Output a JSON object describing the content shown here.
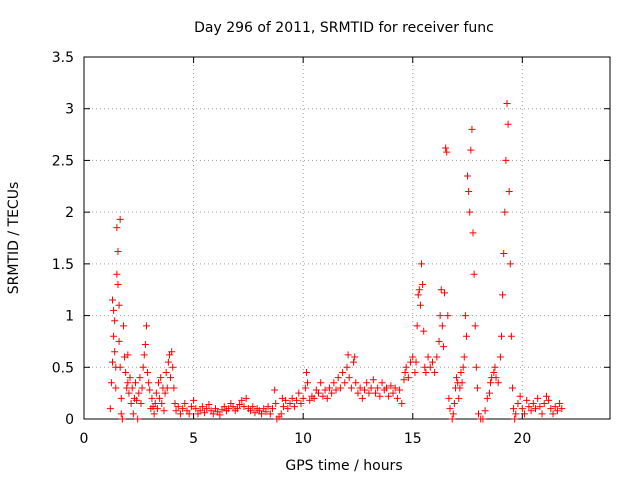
{
  "chart_data": {
    "type": "scatter",
    "title": "Day 296 of 2011, SRMTID for receiver func",
    "xlabel": "GPS time / hours",
    "ylabel": "SRMTID / TECUs",
    "xlim": [
      0,
      24
    ],
    "ylim": [
      0,
      3.5
    ],
    "grid": true,
    "marker": "+",
    "color": "#ff0000",
    "xticks": [
      0,
      5,
      10,
      15,
      20
    ],
    "xtick_labels": [
      "0",
      "5",
      "10",
      "15",
      "20"
    ],
    "yticks": [
      0,
      0.5,
      1,
      1.5,
      2,
      2.5,
      3,
      3.5
    ],
    "ytick_labels": [
      "0",
      "0.5",
      "1",
      "1.5",
      "2",
      "2.5",
      "3",
      "3.5"
    ],
    "series": [
      {
        "name": "SRMTID",
        "points": [
          [
            1.2,
            0.1
          ],
          [
            1.25,
            0.35
          ],
          [
            1.3,
            0.55
          ],
          [
            1.3,
            1.15
          ],
          [
            1.35,
            1.05
          ],
          [
            1.35,
            0.8
          ],
          [
            1.4,
            0.65
          ],
          [
            1.4,
            0.95
          ],
          [
            1.45,
            0.5
          ],
          [
            1.45,
            0.3
          ],
          [
            1.5,
            1.85
          ],
          [
            1.5,
            1.4
          ],
          [
            1.55,
            1.62
          ],
          [
            1.55,
            1.3
          ],
          [
            1.6,
            1.1
          ],
          [
            1.6,
            0.75
          ],
          [
            1.65,
            1.93
          ],
          [
            1.65,
            0.5
          ],
          [
            1.7,
            0.2
          ],
          [
            1.7,
            0.05
          ],
          [
            1.75,
            0.0
          ],
          [
            1.8,
            0.9
          ],
          [
            1.85,
            0.6
          ],
          [
            1.9,
            0.45
          ],
          [
            1.95,
            0.3
          ],
          [
            2.0,
            0.62
          ],
          [
            2.0,
            0.35
          ],
          [
            2.05,
            0.25
          ],
          [
            2.1,
            0.4
          ],
          [
            2.15,
            0.15
          ],
          [
            2.2,
            0.3
          ],
          [
            2.25,
            0.05
          ],
          [
            2.3,
            0.2
          ],
          [
            2.35,
            0.35
          ],
          [
            2.4,
            0.18
          ],
          [
            2.45,
            0.0
          ],
          [
            2.5,
            0.25
          ],
          [
            2.55,
            0.4
          ],
          [
            2.6,
            0.15
          ],
          [
            2.65,
            0.3
          ],
          [
            2.7,
            0.5
          ],
          [
            2.75,
            0.62
          ],
          [
            2.8,
            0.72
          ],
          [
            2.85,
            0.9
          ],
          [
            2.9,
            0.45
          ],
          [
            2.95,
            0.35
          ],
          [
            3.0,
            0.28
          ],
          [
            3.05,
            0.1
          ],
          [
            3.1,
            0.2
          ],
          [
            3.15,
            0.12
          ],
          [
            3.2,
            0.05
          ],
          [
            3.25,
            0.15
          ],
          [
            3.3,
            0.25
          ],
          [
            3.35,
            0.1
          ],
          [
            3.4,
            0.35
          ],
          [
            3.45,
            0.2
          ],
          [
            3.5,
            0.4
          ],
          [
            3.55,
            0.15
          ],
          [
            3.6,
            0.3
          ],
          [
            3.65,
            0.08
          ],
          [
            3.7,
            0.25
          ],
          [
            3.75,
            0.45
          ],
          [
            3.8,
            0.3
          ],
          [
            3.85,
            0.55
          ],
          [
            3.9,
            0.62
          ],
          [
            3.95,
            0.4
          ],
          [
            4.0,
            0.65
          ],
          [
            4.05,
            0.5
          ],
          [
            4.1,
            0.3
          ],
          [
            4.15,
            0.15
          ],
          [
            4.2,
            0.08
          ],
          [
            4.3,
            0.12
          ],
          [
            4.4,
            0.05
          ],
          [
            4.5,
            0.1
          ],
          [
            4.6,
            0.15
          ],
          [
            4.7,
            0.08
          ],
          [
            4.8,
            0.05
          ],
          [
            4.9,
            0.12
          ],
          [
            5.0,
            0.18
          ],
          [
            5.1,
            0.1
          ],
          [
            5.2,
            0.05
          ],
          [
            5.3,
            0.08
          ],
          [
            5.4,
            0.12
          ],
          [
            5.5,
            0.06
          ],
          [
            5.6,
            0.1
          ],
          [
            5.7,
            0.14
          ],
          [
            5.8,
            0.08
          ],
          [
            5.9,
            0.05
          ],
          [
            6.0,
            0.1
          ],
          [
            6.1,
            0.07
          ],
          [
            6.2,
            0.04
          ],
          [
            6.3,
            0.09
          ],
          [
            6.4,
            0.12
          ],
          [
            6.5,
            0.08
          ],
          [
            6.6,
            0.1
          ],
          [
            6.7,
            0.15
          ],
          [
            6.8,
            0.12
          ],
          [
            6.9,
            0.08
          ],
          [
            7.0,
            0.1
          ],
          [
            7.1,
            0.14
          ],
          [
            7.2,
            0.18
          ],
          [
            7.3,
            0.12
          ],
          [
            7.4,
            0.2
          ],
          [
            7.5,
            0.1
          ],
          [
            7.6,
            0.08
          ],
          [
            7.7,
            0.12
          ],
          [
            7.8,
            0.06
          ],
          [
            7.9,
            0.1
          ],
          [
            8.0,
            0.08
          ],
          [
            8.1,
            0.05
          ],
          [
            8.2,
            0.1
          ],
          [
            8.3,
            0.07
          ],
          [
            8.4,
            0.12
          ],
          [
            8.5,
            0.05
          ],
          [
            8.6,
            0.1
          ],
          [
            8.7,
            0.28
          ],
          [
            8.75,
            0.15
          ],
          [
            8.8,
            0.0
          ],
          [
            8.9,
            0.02
          ],
          [
            9.0,
            0.05
          ],
          [
            9.05,
            0.2
          ],
          [
            9.1,
            0.12
          ],
          [
            9.2,
            0.18
          ],
          [
            9.3,
            0.1
          ],
          [
            9.4,
            0.15
          ],
          [
            9.5,
            0.2
          ],
          [
            9.6,
            0.12
          ],
          [
            9.7,
            0.18
          ],
          [
            9.8,
            0.25
          ],
          [
            9.9,
            0.15
          ],
          [
            10.0,
            0.2
          ],
          [
            10.1,
            0.3
          ],
          [
            10.15,
            0.45
          ],
          [
            10.2,
            0.35
          ],
          [
            10.3,
            0.18
          ],
          [
            10.4,
            0.22
          ],
          [
            10.5,
            0.2
          ],
          [
            10.6,
            0.28
          ],
          [
            10.7,
            0.25
          ],
          [
            10.8,
            0.35
          ],
          [
            10.9,
            0.22
          ],
          [
            11.0,
            0.28
          ],
          [
            11.1,
            0.2
          ],
          [
            11.2,
            0.3
          ],
          [
            11.3,
            0.25
          ],
          [
            11.4,
            0.35
          ],
          [
            11.5,
            0.28
          ],
          [
            11.6,
            0.4
          ],
          [
            11.7,
            0.3
          ],
          [
            11.8,
            0.45
          ],
          [
            11.9,
            0.35
          ],
          [
            12.0,
            0.5
          ],
          [
            12.05,
            0.62
          ],
          [
            12.1,
            0.4
          ],
          [
            12.2,
            0.3
          ],
          [
            12.3,
            0.55
          ],
          [
            12.35,
            0.6
          ],
          [
            12.4,
            0.35
          ],
          [
            12.5,
            0.25
          ],
          [
            12.6,
            0.3
          ],
          [
            12.7,
            0.2
          ],
          [
            12.8,
            0.28
          ],
          [
            12.9,
            0.35
          ],
          [
            13.0,
            0.25
          ],
          [
            13.1,
            0.3
          ],
          [
            13.2,
            0.38
          ],
          [
            13.3,
            0.25
          ],
          [
            13.4,
            0.3
          ],
          [
            13.5,
            0.22
          ],
          [
            13.6,
            0.35
          ],
          [
            13.7,
            0.28
          ],
          [
            13.8,
            0.3
          ],
          [
            13.9,
            0.22
          ],
          [
            14.0,
            0.32
          ],
          [
            14.1,
            0.25
          ],
          [
            14.2,
            0.3
          ],
          [
            14.3,
            0.2
          ],
          [
            14.4,
            0.28
          ],
          [
            14.5,
            0.15
          ],
          [
            14.6,
            0.38
          ],
          [
            14.65,
            0.45
          ],
          [
            14.7,
            0.5
          ],
          [
            14.8,
            0.4
          ],
          [
            14.9,
            0.55
          ],
          [
            15.0,
            0.6
          ],
          [
            15.1,
            0.45
          ],
          [
            15.15,
            0.55
          ],
          [
            15.2,
            0.9
          ],
          [
            15.25,
            1.2
          ],
          [
            15.3,
            1.25
          ],
          [
            15.35,
            1.1
          ],
          [
            15.4,
            1.5
          ],
          [
            15.45,
            1.3
          ],
          [
            15.5,
            0.85
          ],
          [
            15.55,
            0.5
          ],
          [
            15.6,
            0.45
          ],
          [
            15.7,
            0.6
          ],
          [
            15.8,
            0.5
          ],
          [
            15.9,
            0.55
          ],
          [
            16.0,
            0.45
          ],
          [
            16.1,
            0.6
          ],
          [
            16.2,
            0.75
          ],
          [
            16.25,
            1.0
          ],
          [
            16.3,
            1.25
          ],
          [
            16.35,
            0.9
          ],
          [
            16.4,
            0.7
          ],
          [
            16.45,
            1.22
          ],
          [
            16.5,
            2.62
          ],
          [
            16.55,
            2.58
          ],
          [
            16.6,
            1.0
          ],
          [
            16.65,
            0.2
          ],
          [
            16.7,
            0.1
          ],
          [
            16.8,
            0.0
          ],
          [
            16.85,
            0.05
          ],
          [
            16.9,
            0.15
          ],
          [
            16.95,
            0.3
          ],
          [
            17.0,
            0.4
          ],
          [
            17.05,
            0.35
          ],
          [
            17.1,
            0.2
          ],
          [
            17.15,
            0.3
          ],
          [
            17.2,
            0.45
          ],
          [
            17.25,
            0.35
          ],
          [
            17.3,
            0.5
          ],
          [
            17.35,
            0.6
          ],
          [
            17.4,
            1.0
          ],
          [
            17.45,
            0.8
          ],
          [
            17.5,
            2.35
          ],
          [
            17.55,
            2.2
          ],
          [
            17.6,
            2.0
          ],
          [
            17.65,
            2.6
          ],
          [
            17.7,
            2.8
          ],
          [
            17.75,
            1.8
          ],
          [
            17.8,
            1.4
          ],
          [
            17.85,
            0.9
          ],
          [
            17.9,
            0.5
          ],
          [
            17.95,
            0.3
          ],
          [
            18.0,
            0.05
          ],
          [
            18.1,
            0.0
          ],
          [
            18.2,
            0.0
          ],
          [
            18.3,
            0.08
          ],
          [
            18.4,
            0.2
          ],
          [
            18.5,
            0.25
          ],
          [
            18.55,
            0.35
          ],
          [
            18.6,
            0.4
          ],
          [
            18.7,
            0.45
          ],
          [
            18.75,
            0.5
          ],
          [
            18.8,
            0.4
          ],
          [
            18.9,
            0.35
          ],
          [
            19.0,
            0.6
          ],
          [
            19.05,
            0.8
          ],
          [
            19.1,
            1.2
          ],
          [
            19.15,
            1.6
          ],
          [
            19.2,
            2.0
          ],
          [
            19.25,
            2.5
          ],
          [
            19.3,
            3.05
          ],
          [
            19.35,
            2.85
          ],
          [
            19.4,
            2.2
          ],
          [
            19.45,
            1.5
          ],
          [
            19.5,
            0.8
          ],
          [
            19.55,
            0.3
          ],
          [
            19.6,
            0.1
          ],
          [
            19.65,
            0.0
          ],
          [
            19.7,
            0.05
          ],
          [
            19.8,
            0.15
          ],
          [
            19.9,
            0.22
          ],
          [
            20.0,
            0.1
          ],
          [
            20.1,
            0.05
          ],
          [
            20.2,
            0.18
          ],
          [
            20.3,
            0.12
          ],
          [
            20.4,
            0.08
          ],
          [
            20.5,
            0.15
          ],
          [
            20.6,
            0.1
          ],
          [
            20.7,
            0.2
          ],
          [
            20.8,
            0.12
          ],
          [
            20.9,
            0.05
          ],
          [
            21.0,
            0.15
          ],
          [
            21.1,
            0.22
          ],
          [
            21.2,
            0.18
          ],
          [
            21.3,
            0.1
          ],
          [
            21.4,
            0.05
          ],
          [
            21.5,
            0.12
          ],
          [
            21.6,
            0.08
          ],
          [
            21.7,
            0.15
          ],
          [
            21.8,
            0.1
          ]
        ]
      }
    ]
  }
}
